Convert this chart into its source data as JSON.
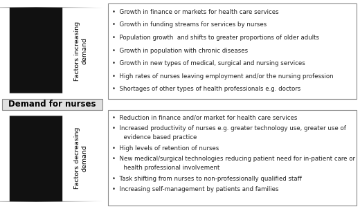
{
  "title_box": "Demand for nurses",
  "increasing_label": "Factors increasing\ndemand",
  "decreasing_label": "Factors decreasing\ndemand",
  "increasing_items": [
    "Growth in finance or markets for health care services",
    "Growth in funding streams for services by nurses",
    "Population growth  and shifts to greater proportions of older adults",
    "Growth in population with chronic diseases",
    "Growth in new types of medical, surgical and nursing services",
    "High rates of nurses leaving employment and/or the nursing profession",
    "Shortages of other types of health professionals e.g. doctors"
  ],
  "decreasing_items": [
    "Reduction in finance and/or market for health care services",
    "Increased productivity of nurses e.g. greater technology use, greater use of\nevidence based practice",
    "High levels of retention of nurses",
    "New medical/surgical technologies reducing patient need for in-patient care or\nhealth professional involvement",
    "Task shifting from nurses to non-professionally qualified staff",
    "Increasing self-management by patients and families"
  ],
  "bg_color": "#ffffff",
  "box_color": "#e0e0e0",
  "border_color": "#888888",
  "arrow_color": "#111111",
  "text_color": "#222222",
  "title_fontsize": 8.5,
  "item_fontsize": 6.2,
  "label_fontsize": 6.8
}
